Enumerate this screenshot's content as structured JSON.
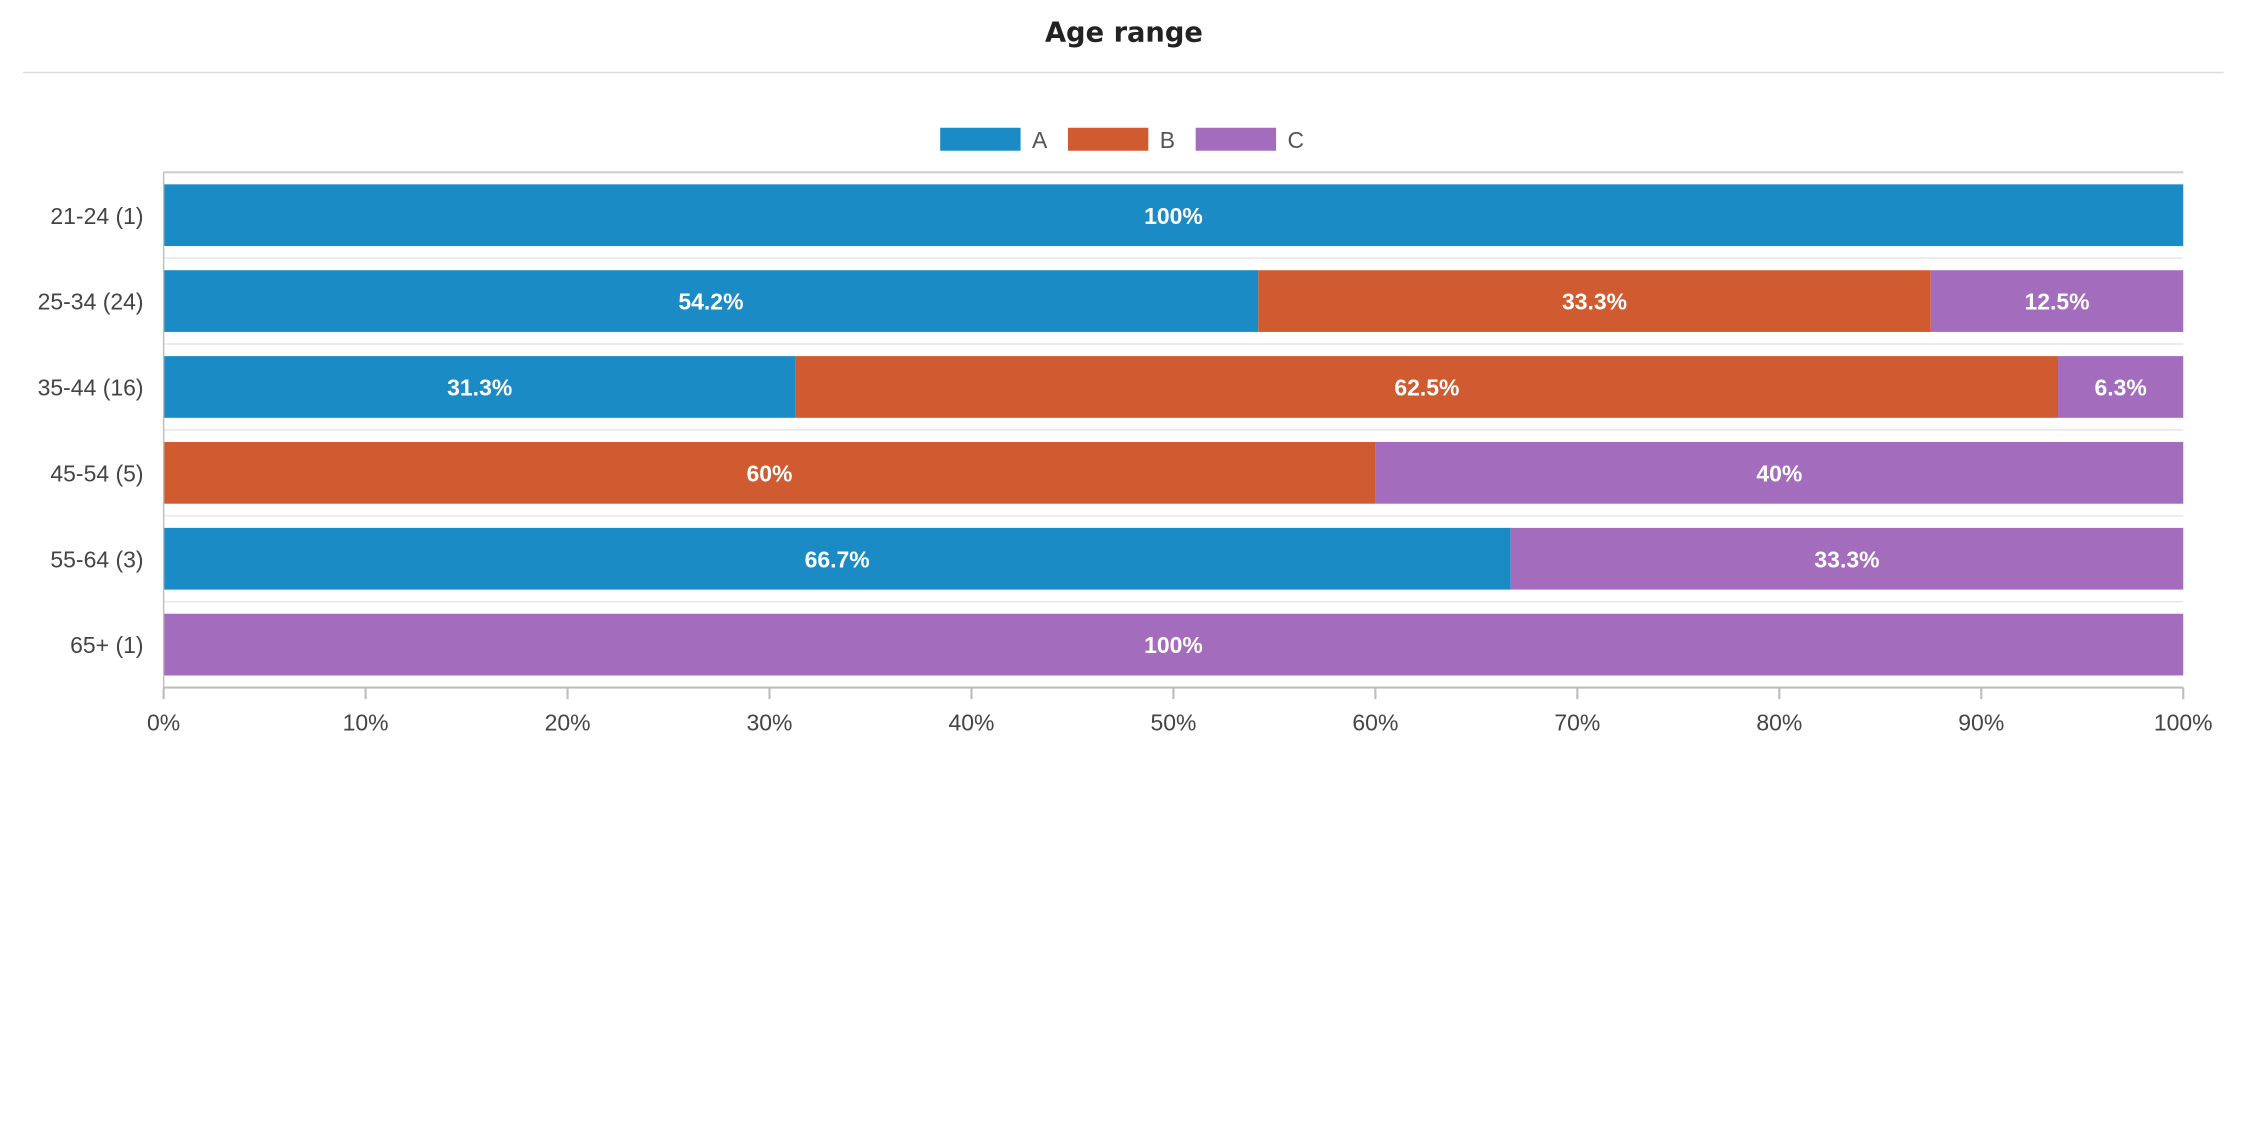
{
  "chart_data": {
    "type": "bar",
    "orientation": "horizontal",
    "stacked": true,
    "title": "Age range",
    "categories": [
      "21-24 (1)",
      "25-34 (24)",
      "35-44 (16)",
      "45-54 (5)",
      "55-64 (3)",
      "65+ (1)"
    ],
    "series": [
      {
        "name": "A",
        "color": "#1b8bc6",
        "values": [
          100,
          54.2,
          31.3,
          0,
          66.7,
          0
        ],
        "labels": [
          "100%",
          "54.2%",
          "31.3%",
          "",
          "66.7%",
          ""
        ]
      },
      {
        "name": "B",
        "color": "#d05b30",
        "values": [
          0,
          33.3,
          62.5,
          60,
          0,
          0
        ],
        "labels": [
          "",
          "33.3%",
          "62.5%",
          "60%",
          "",
          ""
        ]
      },
      {
        "name": "C",
        "color": "#a46cbc",
        "values": [
          0,
          12.5,
          6.3,
          40,
          33.3,
          100
        ],
        "labels": [
          "",
          "12.5%",
          "6.3%",
          "40%",
          "33.3%",
          "100%"
        ]
      }
    ],
    "xlim": [
      0,
      100
    ],
    "xticks": [
      "0%",
      "10%",
      "20%",
      "30%",
      "40%",
      "50%",
      "60%",
      "70%",
      "80%",
      "90%",
      "100%"
    ],
    "legend_position": "top-center",
    "grid": false
  }
}
